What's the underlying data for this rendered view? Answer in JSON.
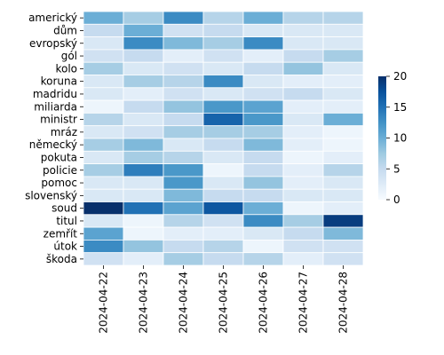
{
  "chart_data": {
    "type": "heatmap",
    "title": "",
    "xlabel": "",
    "ylabel": "",
    "x": [
      "2024-04-22",
      "2024-04-23",
      "2024-04-24",
      "2024-04-25",
      "2024-04-26",
      "2024-04-27",
      "2024-04-28"
    ],
    "y": [
      "americký",
      "dům",
      "evropský",
      "gól",
      "kolo",
      "koruna",
      "madridu",
      "miliarda",
      "ministr",
      "mráz",
      "německý",
      "pokuta",
      "policie",
      "pomoc",
      "slovenský",
      "soud",
      "titul",
      "zemřít",
      "útok",
      "škoda"
    ],
    "values": [
      [
        10,
        7,
        13,
        6,
        10,
        6,
        6
      ],
      [
        5,
        10,
        4,
        5,
        3,
        3,
        3
      ],
      [
        3,
        13,
        9,
        7,
        13,
        3,
        3
      ],
      [
        4,
        5,
        2,
        4,
        2,
        5,
        7
      ],
      [
        7,
        3,
        4,
        3,
        5,
        8,
        3
      ],
      [
        3,
        7,
        6,
        13,
        3,
        2,
        2
      ],
      [
        3,
        2,
        4,
        3,
        4,
        5,
        3
      ],
      [
        1,
        5,
        8,
        12,
        11,
        2,
        2
      ],
      [
        6,
        3,
        5,
        16,
        12,
        3,
        10
      ],
      [
        3,
        4,
        7,
        7,
        7,
        2,
        1
      ],
      [
        7,
        9,
        3,
        5,
        9,
        2,
        1
      ],
      [
        3,
        7,
        6,
        3,
        5,
        1,
        2
      ],
      [
        7,
        14,
        12,
        1,
        5,
        2,
        6
      ],
      [
        3,
        3,
        12,
        3,
        8,
        2,
        3
      ],
      [
        3,
        3,
        9,
        5,
        5,
        3,
        3
      ],
      [
        22,
        15,
        11,
        17,
        10,
        1,
        2
      ],
      [
        3,
        1,
        6,
        4,
        13,
        7,
        19
      ],
      [
        11,
        1,
        2,
        2,
        3,
        5,
        9
      ],
      [
        13,
        8,
        5,
        6,
        1,
        4,
        4
      ],
      [
        4,
        2,
        7,
        5,
        6,
        2,
        4
      ]
    ],
    "colorbar": {
      "range": [
        0,
        20
      ],
      "ticks": [
        0,
        5,
        10,
        15,
        20
      ],
      "colormap": "Blues",
      "colors": [
        "#f7fbff",
        "#deebf7",
        "#c6dbef",
        "#9ecae1",
        "#6baed6",
        "#4292c6",
        "#2171b5",
        "#08519c",
        "#08306b"
      ]
    },
    "grid": false,
    "cell_border_color": "#ffffff"
  }
}
